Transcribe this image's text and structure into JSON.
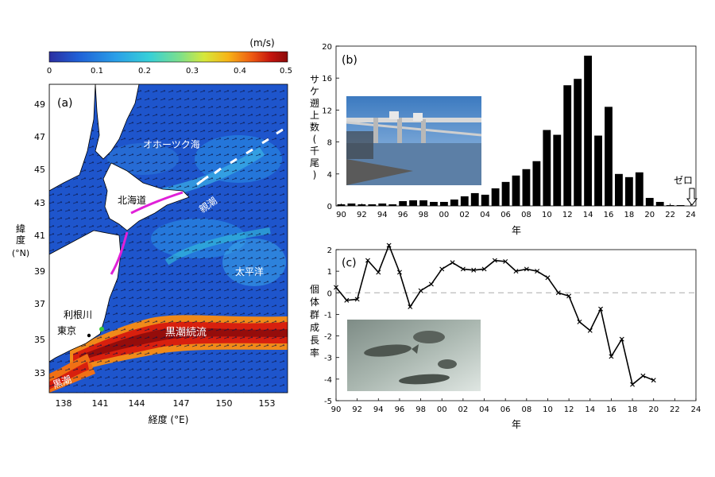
{
  "map_panel": {
    "panel_label": "(a)",
    "colorbar": {
      "unit": "(m/s)",
      "ticks": [
        "0",
        "0.1",
        "0.2",
        "0.3",
        "0.4",
        "0.5"
      ],
      "colors": [
        "#2b2ea0",
        "#1f5fd6",
        "#2a9fe8",
        "#36d0d8",
        "#7ee08a",
        "#d6e83a",
        "#f7b417",
        "#ee5a12",
        "#c4140e",
        "#8a0a0a"
      ]
    },
    "y_axis_label_chars": [
      "緯",
      "度"
    ],
    "y_axis_unit": "(°N)",
    "y_ticks": [
      "49",
      "47",
      "45",
      "43",
      "41",
      "39",
      "37",
      "35",
      "33"
    ],
    "x_axis_label": "経度 (°E)",
    "x_ticks": [
      "138",
      "141",
      "144",
      "147",
      "150",
      "153"
    ],
    "place_labels": {
      "okhotsk": "オホーツク海",
      "hokkaido": "北海道",
      "oyashio": "親潮",
      "pacific": "太平洋",
      "tone": "利根川",
      "tokyo": "東京",
      "kuroshio_ext": "黒潮続流",
      "kuroshio": "黒潮"
    }
  },
  "chart_data": [
    {
      "panel_label": "(b)",
      "type": "bar",
      "ylabel_chars": [
        "サ",
        "ケ",
        "遡",
        "上",
        "数",
        "(",
        "千",
        "尾",
        ")"
      ],
      "xlabel": "年",
      "ylim": [
        0,
        20
      ],
      "y_ticks": [
        "0",
        "4",
        "8",
        "12",
        "16",
        "20"
      ],
      "x_ticks": [
        "90",
        "92",
        "94",
        "96",
        "98",
        "00",
        "02",
        "04",
        "06",
        "08",
        "10",
        "12",
        "14",
        "16",
        "18",
        "20",
        "22",
        "24"
      ],
      "categories": [
        "90",
        "91",
        "92",
        "93",
        "94",
        "95",
        "96",
        "97",
        "98",
        "99",
        "00",
        "01",
        "02",
        "03",
        "04",
        "05",
        "06",
        "07",
        "08",
        "09",
        "10",
        "11",
        "12",
        "13",
        "14",
        "15",
        "16",
        "17",
        "18",
        "19",
        "20",
        "21",
        "22",
        "23",
        "24"
      ],
      "values": [
        0.2,
        0.3,
        0.2,
        0.2,
        0.3,
        0.2,
        0.6,
        0.7,
        0.7,
        0.5,
        0.5,
        0.8,
        1.2,
        1.6,
        1.4,
        2.2,
        3.0,
        3.8,
        4.6,
        5.6,
        9.5,
        8.9,
        15.1,
        15.9,
        18.8,
        8.8,
        12.4,
        4.0,
        3.6,
        4.2,
        1.0,
        0.5,
        0.1,
        0.1,
        0.0
      ],
      "annotation": "ゼロ",
      "grid": false
    },
    {
      "panel_label": "(c)",
      "type": "line",
      "ylabel_chars": [
        "個",
        "体",
        "群",
        "成",
        "長",
        "率"
      ],
      "xlabel": "年",
      "ylim": [
        -5,
        2
      ],
      "y_ticks": [
        "2",
        "1",
        "0",
        "-1",
        "-2",
        "-3",
        "-4",
        "-5"
      ],
      "x_ticks": [
        "90",
        "92",
        "94",
        "96",
        "98",
        "00",
        "02",
        "04",
        "06",
        "08",
        "10",
        "12",
        "14",
        "16",
        "18",
        "20",
        "22",
        "24"
      ],
      "x": [
        0,
        1,
        2,
        3,
        4,
        5,
        6,
        7,
        8,
        9,
        10,
        11,
        12,
        13,
        14,
        15,
        16,
        17,
        18,
        19,
        20,
        21,
        22,
        23,
        24,
        25,
        26,
        27,
        28,
        29,
        30
      ],
      "values": [
        0.25,
        -0.35,
        -0.3,
        1.5,
        0.95,
        2.2,
        0.95,
        -0.65,
        0.1,
        0.4,
        1.1,
        1.4,
        1.1,
        1.05,
        1.1,
        1.5,
        1.45,
        1.0,
        1.1,
        1.0,
        0.7,
        0.0,
        -0.15,
        -1.35,
        -1.75,
        -0.75,
        -2.95,
        -2.15,
        -4.25,
        -3.85,
        -4.05
      ],
      "reference_line": 0,
      "grid": false
    }
  ]
}
